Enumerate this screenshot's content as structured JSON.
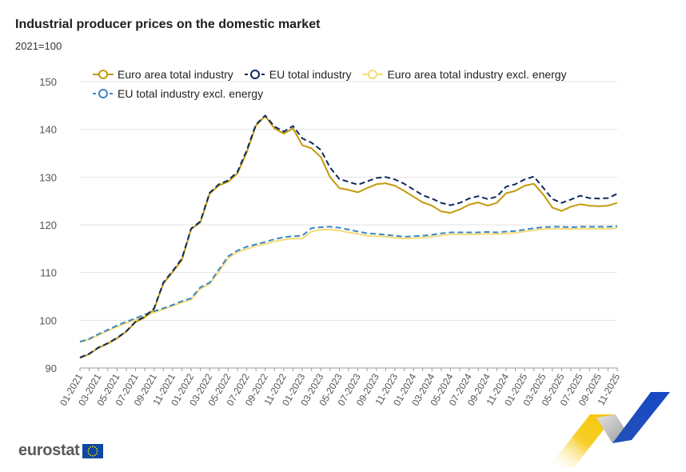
{
  "title": "Industrial producer prices on the domestic market",
  "subtitle": "2021=100",
  "brand": {
    "name": "eurostat"
  },
  "colors": {
    "ea_total": "#c49a0a",
    "eu_total": "#0e2a5e",
    "ea_excl": "#f5dc7a",
    "eu_excl": "#3b86c8",
    "grid": "#e3e3e3",
    "axis_text": "#555555"
  },
  "icons": {
    "logo": "eu-flag-icon",
    "decoration": "corner-chevron-graphic"
  },
  "chart_data": {
    "type": "line",
    "title": "Industrial producer prices on the domestic market",
    "ylabel": "2021=100",
    "ylim": [
      90,
      150
    ],
    "yticks": [
      90,
      100,
      110,
      120,
      130,
      140,
      150
    ],
    "grid": "horizontal",
    "legend_position": "top",
    "x": [
      "01-2021",
      "02-2021",
      "03-2021",
      "04-2021",
      "05-2021",
      "06-2021",
      "07-2021",
      "08-2021",
      "09-2021",
      "10-2021",
      "11-2021",
      "12-2021",
      "01-2022",
      "02-2022",
      "03-2022",
      "04-2022",
      "05-2022",
      "06-2022",
      "07-2022",
      "08-2022",
      "09-2022",
      "10-2022",
      "11-2022",
      "12-2022",
      "01-2023",
      "02-2023",
      "03-2023",
      "04-2023",
      "05-2023",
      "06-2023",
      "07-2023",
      "08-2023",
      "09-2023",
      "10-2023",
      "11-2023",
      "12-2023",
      "01-2024",
      "02-2024",
      "03-2024",
      "04-2024",
      "05-2024",
      "06-2024",
      "07-2024",
      "08-2024",
      "09-2024",
      "10-2024",
      "11-2024",
      "12-2024",
      "01-2025",
      "02-2025",
      "03-2025",
      "04-2025",
      "05-2025",
      "06-2025",
      "07-2025",
      "08-2025",
      "09-2025",
      "10-2025",
      "11-2025"
    ],
    "xtick_labels": [
      "01-2021",
      "03-2021",
      "05-2021",
      "07-2021",
      "09-2021",
      "11-2021",
      "01-2022",
      "03-2022",
      "05-2022",
      "07-2022",
      "09-2022",
      "11-2022",
      "01-2023",
      "03-2023",
      "05-2023",
      "07-2023",
      "09-2023",
      "11-2023",
      "01-2024",
      "03-2024",
      "05-2024",
      "07-2024",
      "09-2024",
      "11-2024",
      "01-2025",
      "03-2025",
      "05-2025",
      "07-2025",
      "09-2025",
      "11-2025"
    ],
    "series": [
      {
        "name": "Euro area total industry",
        "style": "solid",
        "values": [
          92.1,
          92.9,
          94.2,
          95.1,
          96.2,
          97.6,
          99.6,
          100.6,
          102.3,
          107.7,
          110.1,
          112.6,
          119.1,
          120.5,
          126.5,
          128.3,
          129.0,
          130.8,
          135.2,
          140.8,
          142.8,
          140.2,
          139.1,
          140.2,
          136.7,
          136.0,
          134.2,
          130.0,
          127.7,
          127.3,
          126.8,
          127.7,
          128.5,
          128.7,
          128.2,
          127.1,
          125.9,
          124.7,
          124.0,
          122.8,
          122.5,
          123.2,
          124.2,
          124.7,
          124.0,
          124.6,
          126.6,
          127.1,
          128.2,
          128.6,
          126.4,
          123.6,
          122.9,
          123.8,
          124.3,
          124.0,
          123.9,
          124.0,
          124.6
        ]
      },
      {
        "name": "EU total industry",
        "style": "dashed",
        "values": [
          92.2,
          93.0,
          94.3,
          95.2,
          96.3,
          97.7,
          99.7,
          100.8,
          102.5,
          107.9,
          110.3,
          112.9,
          119.2,
          120.7,
          126.7,
          128.5,
          129.3,
          131.1,
          135.6,
          141.0,
          142.9,
          140.6,
          139.5,
          140.7,
          138.1,
          137.2,
          135.7,
          132.0,
          129.6,
          129.0,
          128.4,
          129.1,
          129.8,
          130.0,
          129.5,
          128.6,
          127.4,
          126.2,
          125.5,
          124.6,
          124.1,
          124.6,
          125.5,
          126.0,
          125.4,
          125.9,
          128.0,
          128.5,
          129.5,
          130.1,
          127.8,
          125.4,
          124.6,
          125.3,
          126.1,
          125.6,
          125.5,
          125.6,
          126.5
        ]
      },
      {
        "name": "Euro area total industry excl. energy",
        "style": "solid",
        "values": [
          95.4,
          96.0,
          96.9,
          97.8,
          98.6,
          99.4,
          100.1,
          100.9,
          101.6,
          102.3,
          103.0,
          103.7,
          104.3,
          106.6,
          107.6,
          110.2,
          113.0,
          114.3,
          114.9,
          115.6,
          116.0,
          116.5,
          116.9,
          117.1,
          117.1,
          118.6,
          119.0,
          119.0,
          118.8,
          118.4,
          118.1,
          117.7,
          117.6,
          117.5,
          117.3,
          117.1,
          117.2,
          117.3,
          117.5,
          117.8,
          118.0,
          118.0,
          118.0,
          118.0,
          118.1,
          118.0,
          118.2,
          118.3,
          118.6,
          118.9,
          119.1,
          119.2,
          119.2,
          119.1,
          119.2,
          119.2,
          119.2,
          119.2,
          119.3
        ]
      },
      {
        "name": "EU total industry excl. energy",
        "style": "dashed",
        "values": [
          95.5,
          96.1,
          97.1,
          98.0,
          98.9,
          99.7,
          100.4,
          101.2,
          101.9,
          102.5,
          103.2,
          104.0,
          104.6,
          106.9,
          107.9,
          110.6,
          113.4,
          114.6,
          115.4,
          115.9,
          116.4,
          117.0,
          117.4,
          117.6,
          117.7,
          119.3,
          119.5,
          119.6,
          119.4,
          119.0,
          118.6,
          118.2,
          118.1,
          117.9,
          117.7,
          117.5,
          117.6,
          117.7,
          117.9,
          118.2,
          118.4,
          118.4,
          118.4,
          118.4,
          118.5,
          118.4,
          118.6,
          118.7,
          119.0,
          119.3,
          119.5,
          119.6,
          119.6,
          119.5,
          119.6,
          119.6,
          119.6,
          119.6,
          119.7
        ]
      }
    ]
  }
}
